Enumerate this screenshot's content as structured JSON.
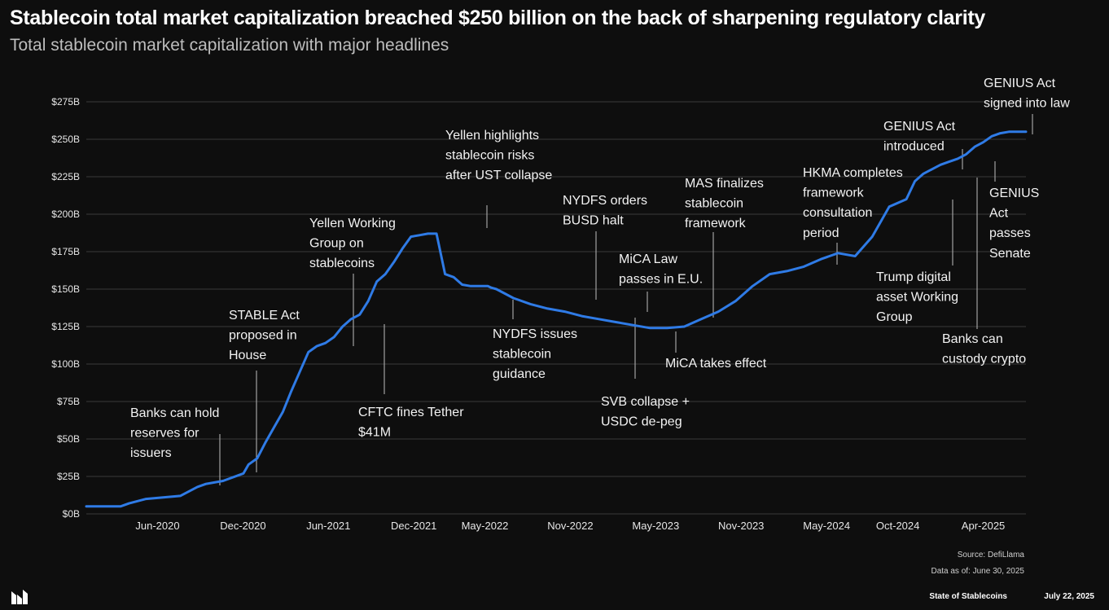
{
  "title": "Stablecoin total market capitalization breached $250 billion on the back of sharpening regulatory clarity",
  "subtitle": "Total stablecoin market capitalization with major headlines",
  "footer": {
    "source": "Source: DefiLlama",
    "as_of": "Data as of: June 30, 2025",
    "brand": "State of Stablecoins",
    "date": "July 22, 2025"
  },
  "colors": {
    "background": "#0e0e0e",
    "line": "#2f7be6",
    "grid": "#3a3a3a"
  },
  "chart_data": {
    "type": "line",
    "title": "Stablecoin total market capitalization breached $250 billion on the back of sharpening regulatory clarity",
    "subtitle": "Total stablecoin market capitalization with major headlines",
    "xlabel": "",
    "ylabel": "",
    "xlim": [
      2020.0,
      2025.5
    ],
    "ylim": [
      0,
      275
    ],
    "grid": true,
    "y_ticks": [
      0,
      25,
      50,
      75,
      100,
      125,
      150,
      175,
      200,
      225,
      250,
      275
    ],
    "y_tick_labels": [
      "$0B",
      "$25B",
      "$50B",
      "$75B",
      "$100B",
      "$125B",
      "$150B",
      "$175B",
      "$200B",
      "$225B",
      "$250B",
      "$275B"
    ],
    "x_ticks": [
      {
        "label": "Jun-2020",
        "x": 2020.417
      },
      {
        "label": "Dec-2020",
        "x": 2020.917
      },
      {
        "label": "Jun-2021",
        "x": 2021.417
      },
      {
        "label": "Dec-2021",
        "x": 2021.917
      },
      {
        "label": "May-2022",
        "x": 2022.333
      },
      {
        "label": "Nov-2022",
        "x": 2022.833
      },
      {
        "label": "May-2023",
        "x": 2023.333
      },
      {
        "label": "Nov-2023",
        "x": 2023.833
      },
      {
        "label": "May-2024",
        "x": 2024.333
      },
      {
        "label": "Oct-2024",
        "x": 2024.75
      },
      {
        "label": "Apr-2025",
        "x": 2025.25
      }
    ],
    "series": [
      {
        "name": "Total stablecoin market capitalization ($B)",
        "x": [
          2020.0,
          2020.2,
          2020.25,
          2020.35,
          2020.55,
          2020.6,
          2020.65,
          2020.7,
          2020.8,
          2020.92,
          2020.95,
          2021.0,
          2021.05,
          2021.1,
          2021.15,
          2021.2,
          2021.25,
          2021.3,
          2021.35,
          2021.4,
          2021.45,
          2021.5,
          2021.55,
          2021.6,
          2021.65,
          2021.7,
          2021.75,
          2021.8,
          2021.85,
          2021.9,
          2021.95,
          2022.0,
          2022.05,
          2022.1,
          2022.15,
          2022.2,
          2022.25,
          2022.3,
          2022.35,
          2022.37,
          2022.4,
          2022.45,
          2022.5,
          2022.6,
          2022.7,
          2022.8,
          2022.9,
          2023.0,
          2023.1,
          2023.2,
          2023.3,
          2023.4,
          2023.5,
          2023.6,
          2023.7,
          2023.8,
          2023.9,
          2024.0,
          2024.1,
          2024.2,
          2024.3,
          2024.35,
          2024.4,
          2024.5,
          2024.6,
          2024.7,
          2024.8,
          2024.85,
          2024.9,
          2024.95,
          2025.0,
          2025.05,
          2025.1,
          2025.15,
          2025.2,
          2025.25,
          2025.3,
          2025.35,
          2025.4,
          2025.45,
          2025.5
        ],
        "values": [
          5,
          5,
          7,
          10,
          12,
          15,
          18,
          20,
          22,
          27,
          33,
          37,
          48,
          58,
          68,
          82,
          95,
          108,
          112,
          114,
          118,
          125,
          130,
          133,
          142,
          155,
          160,
          168,
          177,
          185,
          186,
          187,
          187,
          160,
          158,
          153,
          152,
          152,
          152,
          151,
          150,
          147,
          144,
          140,
          137,
          135,
          132,
          130,
          128,
          126,
          124,
          124,
          125,
          130,
          135,
          142,
          152,
          160,
          162,
          165,
          170,
          172,
          174,
          172,
          185,
          205,
          210,
          222,
          227,
          230,
          233,
          235,
          237,
          240,
          245,
          248,
          252,
          254,
          255,
          255,
          255
        ]
      }
    ],
    "annotations": [
      {
        "text": [
          "Banks can hold",
          "reserves for",
          "issuers"
        ],
        "x": 2020.78,
        "y": 20
      },
      {
        "text": [
          "STABLE Act",
          "proposed in",
          "House"
        ],
        "x": 2020.94,
        "y": 27
      },
      {
        "text": [
          "Yellen Working",
          "Group on",
          "stablecoins"
        ],
        "x": 2021.6,
        "y": 114
      },
      {
        "text": [
          "CFTC fines Tether",
          "$41M"
        ],
        "x": 2021.8,
        "y": 125
      },
      {
        "text": [
          "Yellen highlights",
          "stablecoin risks",
          "after UST collapse"
        ],
        "x": 2022.36,
        "y": 187
      },
      {
        "text": [
          "NYDFS issues",
          "stablecoin",
          "guidance"
        ],
        "x": 2022.5,
        "y": 152
      },
      {
        "text": [
          "NYDFS orders",
          "BUSD halt"
        ],
        "x": 2023.1,
        "y": 142
      },
      {
        "text": [
          "SVB collapse +",
          "USDC de-peg"
        ],
        "x": 2023.33,
        "y": 137
      },
      {
        "text": [
          "MiCA Law",
          "passes in E.U."
        ],
        "x": 2023.42,
        "y": 137
      },
      {
        "text": [
          "MiCA takes effect"
        ],
        "x": 2023.5,
        "y": 127
      },
      {
        "text": [
          "MAS finalizes",
          "stablecoin",
          "framework"
        ],
        "x": 2023.65,
        "y": 130
      },
      {
        "text": [
          "HKMA completes",
          "framework",
          "consultation",
          "period"
        ],
        "x": 2024.06,
        "y": 160
      },
      {
        "text": [
          "Trump digital",
          "asset Working",
          "Group"
        ],
        "x": 2025.05,
        "y": 210
      },
      {
        "text": [
          "GENIUS Act",
          "introduced"
        ],
        "x": 2025.11,
        "y": 228
      },
      {
        "text": [
          "Banks can",
          "custody crypto"
        ],
        "x": 2025.2,
        "y": 225
      },
      {
        "text": [
          "GENIUS",
          "Act",
          "passes",
          "Senate"
        ],
        "x": 2025.3,
        "y": 235
      },
      {
        "text": [
          "GENIUS Act",
          "signed into law"
        ],
        "x": 2025.48,
        "y": 255
      }
    ]
  }
}
